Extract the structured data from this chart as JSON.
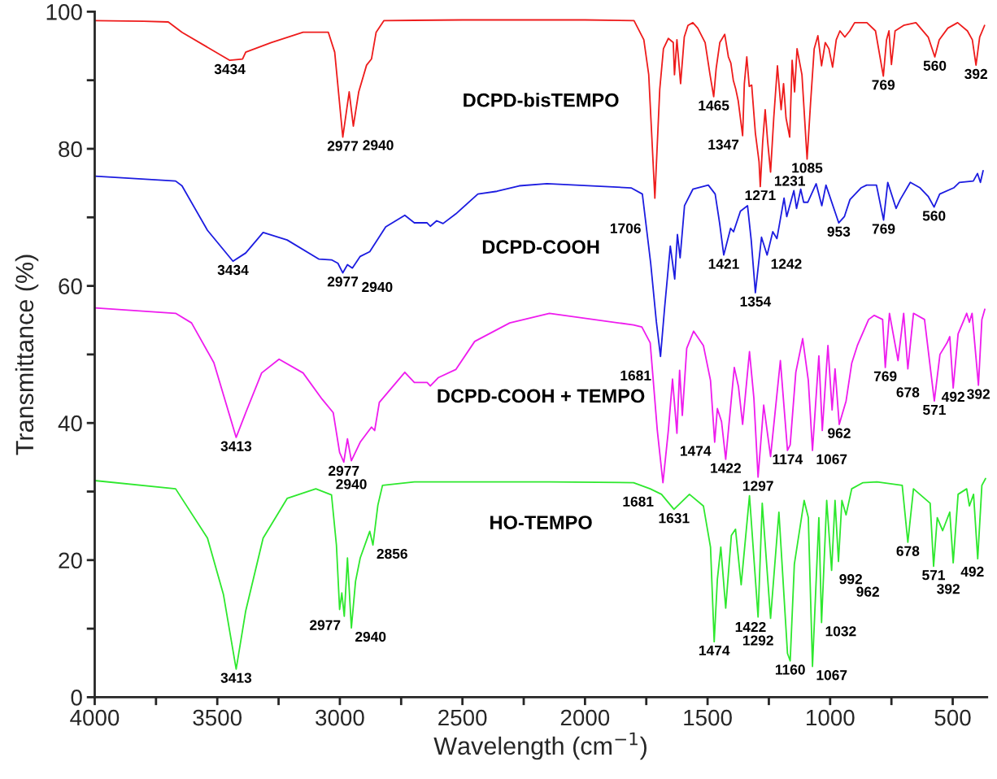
{
  "chart_data": {
    "type": "line",
    "xlabel": "Wavelength (cm$^{−1}$)",
    "ylabel": "Transmittance (%)",
    "xlim": [
      4000,
      360
    ],
    "ylim": [
      0,
      100
    ],
    "xticks": [
      4000,
      {
        "value": 3750,
        "label": null
      },
      3500,
      {
        "value": 3250,
        "label": null
      },
      3000,
      {
        "value": 2750,
        "label": null
      },
      2500,
      {
        "value": 2250,
        "label": null
      },
      2000,
      {
        "value": 1750,
        "label": null
      },
      1500,
      {
        "value": 1250,
        "label": null
      },
      1000,
      {
        "value": 750,
        "label": null
      },
      500
    ],
    "yticks": [
      0,
      {
        "value": 10,
        "label": null
      },
      20,
      {
        "value": 30,
        "label": null
      },
      40,
      {
        "value": 50,
        "label": null
      },
      60,
      {
        "value": 70,
        "label": null
      },
      80,
      {
        "value": 90,
        "label": null
      },
      100
    ],
    "grid": false,
    "legend": false,
    "marker": "none",
    "line_style": "solid",
    "series": [
      {
        "name": "DCPD-bisTEMPO",
        "color": "#ee1c1c",
        "x": [
          4000,
          3800,
          3700,
          3644,
          3449,
          3397,
          3384,
          3280,
          3150,
          3047,
          3021,
          2988,
          2962,
          2945,
          2923,
          2891,
          2871,
          2852,
          2820,
          2500,
          2000,
          1800,
          1760,
          1740,
          1715,
          1695,
          1680,
          1660,
          1640,
          1635,
          1625,
          1610,
          1595,
          1580,
          1560,
          1540,
          1510,
          1490,
          1475,
          1465,
          1450,
          1430,
          1415,
          1405,
          1395,
          1385,
          1375,
          1357,
          1350,
          1340,
          1330,
          1320,
          1305,
          1290,
          1285,
          1275,
          1265,
          1255,
          1243,
          1230,
          1215,
          1200,
          1190,
          1180,
          1165,
          1155,
          1145,
          1135,
          1115,
          1094,
          1080,
          1065,
          1050,
          1035,
          1020,
          1005,
          990,
          975,
          960,
          940,
          920,
          900,
          850,
          815,
          783,
          770,
          760,
          750,
          735,
          700,
          650,
          600,
          573,
          555,
          520,
          480,
          440,
          420,
          405,
          390,
          370
        ],
        "values": [
          98.7,
          98.6,
          98.5,
          97,
          92.9,
          93.1,
          94.1,
          95.5,
          97,
          97,
          94.1,
          81.7,
          88.3,
          83.3,
          88.3,
          92.2,
          93.1,
          97,
          98.7,
          98.8,
          98.8,
          98.7,
          95.9,
          90.8,
          72.8,
          88.7,
          94.6,
          96.1,
          95.5,
          90.8,
          95.9,
          89.5,
          96.3,
          98,
          98.4,
          97.6,
          95.5,
          90.8,
          87.6,
          91.7,
          95.5,
          96.7,
          93.4,
          92.5,
          90,
          88.7,
          87,
          81.9,
          89.5,
          93.4,
          89.1,
          89.3,
          82.3,
          78.1,
          74.5,
          81.1,
          85.7,
          81.1,
          76.6,
          84.5,
          92.1,
          85.7,
          89.5,
          84.5,
          81.7,
          92.9,
          88.3,
          94.6,
          90.8,
          78.5,
          86.6,
          94.6,
          96.5,
          92.1,
          95.5,
          94.6,
          91.9,
          95.9,
          97.2,
          96.3,
          97.2,
          98.4,
          98.4,
          97.2,
          90.6,
          95.9,
          97.2,
          92.3,
          97.2,
          98,
          98.4,
          96.3,
          93.4,
          95.9,
          97.6,
          98.4,
          97.2,
          95.9,
          92.2,
          96.3,
          98
        ]
      },
      {
        "name": "DCPD-COOH",
        "color": "#1c1ce0",
        "x": [
          4000,
          3670,
          3644,
          3540,
          3436,
          3384,
          3313,
          3215,
          3085,
          3034,
          3008,
          2988,
          2969,
          2949,
          2917,
          2878,
          2813,
          2735,
          2696,
          2644,
          2631,
          2605,
          2579,
          2527,
          2437,
          2359,
          2268,
          2155,
          1812,
          1766,
          1732,
          1709,
          1692,
          1675,
          1652,
          1634,
          1623,
          1612,
          1594,
          1560,
          1497,
          1469,
          1451,
          1434,
          1406,
          1394,
          1366,
          1337,
          1322,
          1305,
          1280,
          1257,
          1234,
          1217,
          1188,
          1177,
          1148,
          1137,
          1120,
          1108,
          1091,
          1057,
          1034,
          1017,
          965,
          942,
          919,
          874,
          851,
          811,
          782,
          765,
          731,
          714,
          673,
          633,
          599,
          576,
          553,
          496,
          473,
          416,
          399,
          387,
          376
        ],
        "values": [
          76,
          75.3,
          74.6,
          68.1,
          63.6,
          64.8,
          67.8,
          66.7,
          63.9,
          63.8,
          63.3,
          61.9,
          63.1,
          62.6,
          64.3,
          65,
          68.6,
          70.3,
          69.2,
          69.2,
          68.7,
          69.5,
          69.1,
          70.5,
          73.4,
          73.8,
          74.6,
          74.9,
          74.3,
          73.4,
          63.3,
          54.8,
          49.7,
          56.9,
          65.8,
          61,
          67.5,
          64.1,
          71.7,
          74.1,
          74.7,
          73.4,
          69.2,
          64.5,
          68.4,
          67.9,
          70.9,
          71.7,
          66.7,
          59,
          67.1,
          64.5,
          67.9,
          66.9,
          72.8,
          70.1,
          73.9,
          71.3,
          74.1,
          72.2,
          72.2,
          74.9,
          71.7,
          74.7,
          69.2,
          70.1,
          72.6,
          74.3,
          74.7,
          74.7,
          69.6,
          75.1,
          71.3,
          72.6,
          75.1,
          74.3,
          73,
          71.5,
          73.4,
          74.3,
          75.1,
          75.3,
          76.4,
          75.1,
          76.8
        ]
      },
      {
        "name": "DCPD-COOH + TEMPO",
        "color": "#ee1cee",
        "x": [
          4000,
          3670,
          3605,
          3514,
          3423,
          3384,
          3319,
          3248,
          3150,
          3073,
          3027,
          3001,
          2984,
          2969,
          2953,
          2917,
          2871,
          2858,
          2839,
          2735,
          2696,
          2644,
          2631,
          2599,
          2527,
          2450,
          2307,
          2145,
          1802,
          1768,
          1734,
          1705,
          1682,
          1660,
          1643,
          1625,
          1614,
          1603,
          1585,
          1557,
          1517,
          1488,
          1471,
          1460,
          1443,
          1426,
          1391,
          1374,
          1357,
          1329,
          1311,
          1294,
          1271,
          1243,
          1203,
          1174,
          1163,
          1140,
          1112,
          1089,
          1072,
          1046,
          1032,
          1009,
          992,
          980,
          963,
          935,
          912,
          889,
          843,
          820,
          786,
          775,
          758,
          723,
          700,
          683,
          660,
          615,
          575,
          552,
          523,
          512,
          498,
          478,
          443,
          432,
          421,
          395,
          381,
          369
        ],
        "values": [
          56.8,
          56,
          54.6,
          48.8,
          37.9,
          41.5,
          47.3,
          49.3,
          47.3,
          43.5,
          41.5,
          35.7,
          34.3,
          37.7,
          34.5,
          37.2,
          39.4,
          38.9,
          43,
          47.4,
          45.9,
          45.9,
          45.4,
          46.6,
          47.8,
          51.9,
          54.6,
          56,
          54.3,
          54,
          51.7,
          38.9,
          31.3,
          38.9,
          46.4,
          38.5,
          47.7,
          41.1,
          50.9,
          53.4,
          51.3,
          46.2,
          37.2,
          42.1,
          40.2,
          34.7,
          48.1,
          45.3,
          39.8,
          50.4,
          43.6,
          32.1,
          42.6,
          35.1,
          49.1,
          36,
          36.8,
          47.4,
          52.3,
          46.2,
          36,
          49.8,
          38.9,
          51.3,
          41.9,
          47.9,
          39.8,
          43.2,
          48.7,
          51.3,
          55.1,
          55.7,
          55.1,
          48.1,
          56,
          49.1,
          56,
          47.9,
          56,
          55.1,
          43.2,
          50,
          51.7,
          52.6,
          45.1,
          53,
          56,
          54.7,
          56,
          45.5,
          55.1,
          56.6
        ]
      },
      {
        "name": "HO-TEMPO",
        "color": "#2ee82e",
        "x": [
          4000,
          3670,
          3540,
          3475,
          3423,
          3384,
          3313,
          3215,
          3098,
          3034,
          3014,
          3001,
          2992,
          2982,
          2969,
          2953,
          2936,
          2917,
          2878,
          2865,
          2845,
          2826,
          2696,
          2145,
          1802,
          1734,
          1688,
          1637,
          1574,
          1517,
          1488,
          1473,
          1460,
          1446,
          1426,
          1403,
          1386,
          1363,
          1329,
          1294,
          1277,
          1243,
          1209,
          1174,
          1163,
          1146,
          1106,
          1089,
          1072,
          1046,
          1035,
          1014,
          994,
          980,
          966,
          952,
          935,
          912,
          866,
          809,
          706,
          683,
          660,
          592,
          578,
          563,
          541,
          512,
          498,
          478,
          443,
          432,
          415,
          398,
          381,
          366
        ],
        "values": [
          31.6,
          30.4,
          23.2,
          15,
          4.1,
          12.6,
          23.2,
          29,
          30.4,
          29.5,
          22.2,
          12.8,
          15.2,
          11.8,
          20.3,
          10.1,
          16.9,
          20.3,
          24.2,
          22.2,
          28,
          30.9,
          31.4,
          31.4,
          31.3,
          30.4,
          29.6,
          27.4,
          29.6,
          27.9,
          21.9,
          8.1,
          17.2,
          21.9,
          13,
          23.6,
          24.5,
          16.4,
          29.4,
          11.7,
          28.3,
          11.5,
          27,
          6.4,
          5.3,
          19.4,
          28.7,
          26.2,
          4.5,
          26.2,
          10.9,
          28.7,
          18.5,
          28.7,
          19.8,
          28.7,
          26.6,
          30.4,
          31.3,
          31.4,
          30.9,
          22.6,
          30.4,
          28.3,
          19.1,
          26.2,
          24.3,
          27,
          19.6,
          29.6,
          30.4,
          27.9,
          29.6,
          20.2,
          30.9,
          31.9
        ]
      }
    ],
    "annotations": [
      {
        "text": "3434",
        "x": 3449,
        "y": 92.9
      },
      {
        "text": "2977",
        "x": 2988,
        "y": 81.7
      },
      {
        "text": "2940",
        "x": 2945,
        "y": 83.3
      },
      {
        "text": "1706",
        "x": 1715,
        "y": 72.8
      },
      {
        "text": "1465",
        "x": 1475,
        "y": 87.6
      },
      {
        "text": "1347",
        "x": 1357,
        "y": 81.9
      },
      {
        "text": "1271",
        "x": 1285,
        "y": 74.5
      },
      {
        "text": "1231",
        "x": 1243,
        "y": 76.6
      },
      {
        "text": "1085",
        "x": 1094,
        "y": 78.5
      },
      {
        "text": "769",
        "x": 783,
        "y": 90.6
      },
      {
        "text": "560",
        "x": 573,
        "y": 93.4
      },
      {
        "text": "392",
        "x": 405,
        "y": 92.2
      },
      {
        "text": "3434",
        "x": 3436,
        "y": 63.6
      },
      {
        "text": "2977",
        "x": 2988,
        "y": 61.9
      },
      {
        "text": "2940",
        "x": 2949,
        "y": 62.6
      },
      {
        "text": "1681",
        "x": 1692,
        "y": 49.7
      },
      {
        "text": "1421",
        "x": 1434,
        "y": 64.5
      },
      {
        "text": "1354",
        "x": 1305,
        "y": 59
      },
      {
        "text": "1242",
        "x": 1257,
        "y": 64.5
      },
      {
        "text": "953",
        "x": 965,
        "y": 69.2
      },
      {
        "text": "769",
        "x": 782,
        "y": 69.6
      },
      {
        "text": "560",
        "x": 576,
        "y": 71.5
      },
      {
        "text": "3413",
        "x": 3423,
        "y": 37.9
      },
      {
        "text": "2977",
        "x": 2984,
        "y": 34.3
      },
      {
        "text": "2940",
        "x": 2953,
        "y": 34.5
      },
      {
        "text": "1681",
        "x": 1682,
        "y": 31.3
      },
      {
        "text": "1474",
        "x": 1471,
        "y": 37.2
      },
      {
        "text": "1422",
        "x": 1426,
        "y": 34.7
      },
      {
        "text": "1297",
        "x": 1294,
        "y": 32.1
      },
      {
        "text": "1174",
        "x": 1174,
        "y": 36
      },
      {
        "text": "1067",
        "x": 1072,
        "y": 36
      },
      {
        "text": "962",
        "x": 963,
        "y": 39.8
      },
      {
        "text": "769",
        "x": 775,
        "y": 48.1
      },
      {
        "text": "678",
        "x": 683,
        "y": 47.9
      },
      {
        "text": "571",
        "x": 575,
        "y": 43.2
      },
      {
        "text": "492",
        "x": 498,
        "y": 45.1
      },
      {
        "text": "392",
        "x": 395,
        "y": 45.5
      },
      {
        "text": "3413",
        "x": 3423,
        "y": 4.1
      },
      {
        "text": "2977",
        "x": 2982,
        "y": 11.8
      },
      {
        "text": "2940",
        "x": 2953,
        "y": 10.1
      },
      {
        "text": "2856",
        "x": 2865,
        "y": 22.2
      },
      {
        "text": "1631",
        "x": 1637,
        "y": 27.4
      },
      {
        "text": "1474",
        "x": 1473,
        "y": 8.1
      },
      {
        "text": "1422",
        "x": 1426,
        "y": 13
      },
      {
        "text": "1292",
        "x": 1294,
        "y": 11.7
      },
      {
        "text": "1160",
        "x": 1163,
        "y": 5.3
      },
      {
        "text": "1067",
        "x": 1072,
        "y": 4.5
      },
      {
        "text": "1032",
        "x": 1035,
        "y": 10.9
      },
      {
        "text": "992",
        "x": 994,
        "y": 18.5
      },
      {
        "text": "962",
        "x": 966,
        "y": 19.8
      },
      {
        "text": "678",
        "x": 683,
        "y": 22.6
      },
      {
        "text": "571",
        "x": 578,
        "y": 19.1
      },
      {
        "text": "492",
        "x": 498,
        "y": 19.6
      },
      {
        "text": "392",
        "x": 398,
        "y": 20.2
      }
    ]
  }
}
